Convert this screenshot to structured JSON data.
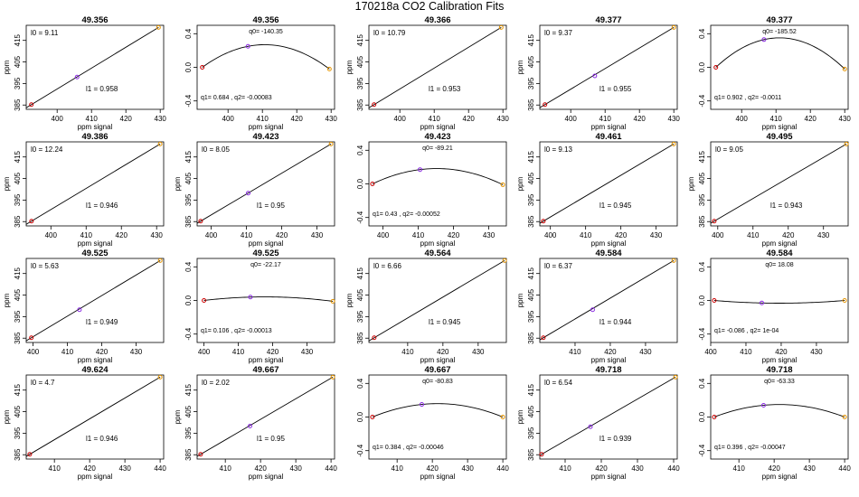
{
  "figure": {
    "title": "170218a   CO2 Calibration Fits",
    "colors": {
      "low_point": "#cc0000",
      "mid_point": "#8a2be2",
      "high_point": "#e69500",
      "line": "#000000"
    }
  },
  "chart_data": [
    {
      "type": "scatter",
      "kind": "linear",
      "title": "49.356",
      "xlabel": "ppm signal",
      "ylabel": "ppm",
      "xlim": [
        391,
        431
      ],
      "ylim": [
        383,
        422
      ],
      "xticks": [
        400,
        410,
        420,
        430
      ],
      "yticks": [
        385,
        395,
        405,
        415
      ],
      "points": [
        {
          "x": 392.5,
          "y": 385.2
        },
        {
          "x": 405.8,
          "y": 398.0
        },
        {
          "x": 429.5,
          "y": 421.0
        }
      ],
      "annotations": {
        "l0": "l0 =  9.11",
        "l1": "l1 =  0.958"
      }
    },
    {
      "type": "scatter",
      "kind": "quad",
      "title": "49.356",
      "xlabel": "ppm signal",
      "ylabel": "",
      "xlim": [
        391,
        431
      ],
      "ylim": [
        -0.5,
        0.5
      ],
      "xticks": [
        400,
        410,
        420,
        430
      ],
      "yticks": [
        -0.4,
        0.0,
        0.4
      ],
      "points": [
        {
          "x": 392.5,
          "y": 0.0
        },
        {
          "x": 405.8,
          "y": 0.25
        },
        {
          "x": 429.5,
          "y": -0.02
        }
      ],
      "annotations": {
        "q0": "q0= -140.35",
        "q12": "q1= 0.684 , q2= -0.00083"
      }
    },
    {
      "type": "scatter",
      "kind": "linear",
      "title": "49.366",
      "xlabel": "ppm signal",
      "ylabel": "ppm",
      "xlim": [
        391,
        431
      ],
      "ylim": [
        383,
        422
      ],
      "xticks": [
        400,
        410,
        420,
        430
      ],
      "yticks": [
        385,
        395,
        405,
        415
      ],
      "points": [
        {
          "x": 392.5,
          "y": 385.2
        },
        {
          "x": 429.5,
          "y": 421.0
        }
      ],
      "annotations": {
        "l0": "l0 =  10.79",
        "l1": "l1 =  0.953"
      }
    },
    {
      "type": "scatter",
      "kind": "linear",
      "title": "49.377",
      "xlabel": "ppm signal",
      "ylabel": "ppm",
      "xlim": [
        391,
        431
      ],
      "ylim": [
        383,
        422
      ],
      "xticks": [
        400,
        410,
        420,
        430
      ],
      "yticks": [
        385,
        395,
        405,
        415
      ],
      "points": [
        {
          "x": 392.5,
          "y": 385.2
        },
        {
          "x": 407.0,
          "y": 398.5
        },
        {
          "x": 430.0,
          "y": 421.0
        }
      ],
      "annotations": {
        "l0": "l0 =  9.37",
        "l1": "l1 =  0.955"
      }
    },
    {
      "type": "scatter",
      "kind": "quad",
      "title": "49.377",
      "xlabel": "ppm signal",
      "ylabel": "",
      "xlim": [
        391,
        431
      ],
      "ylim": [
        -0.5,
        0.5
      ],
      "xticks": [
        400,
        410,
        420,
        430
      ],
      "yticks": [
        -0.4,
        0.0,
        0.4
      ],
      "points": [
        {
          "x": 392.5,
          "y": 0.0
        },
        {
          "x": 406.5,
          "y": 0.33
        },
        {
          "x": 430.0,
          "y": -0.02
        }
      ],
      "annotations": {
        "q0": "q0= -185.52",
        "q12": "q1= 0.902 , q2= -0.0011"
      }
    },
    {
      "type": "scatter",
      "kind": "linear",
      "title": "49.386",
      "xlabel": "ppm signal",
      "ylabel": "ppm",
      "xlim": [
        393,
        432
      ],
      "ylim": [
        383,
        422
      ],
      "xticks": [
        400,
        410,
        420,
        430
      ],
      "yticks": [
        385,
        395,
        405,
        415
      ],
      "points": [
        {
          "x": 394.5,
          "y": 385.2
        },
        {
          "x": 431.0,
          "y": 421.0
        }
      ],
      "annotations": {
        "l0": "l0 =  12.24",
        "l1": "l1 =  0.946"
      }
    },
    {
      "type": "scatter",
      "kind": "linear",
      "title": "49.423",
      "xlabel": "ppm signal",
      "ylabel": "ppm",
      "xlim": [
        396,
        435
      ],
      "ylim": [
        383,
        422
      ],
      "xticks": [
        400,
        410,
        420,
        430
      ],
      "yticks": [
        385,
        395,
        405,
        415
      ],
      "points": [
        {
          "x": 397.0,
          "y": 385.2
        },
        {
          "x": 410.5,
          "y": 398.2
        },
        {
          "x": 434.0,
          "y": 421.0
        }
      ],
      "annotations": {
        "l0": "l0 =  8.05",
        "l1": "l1 =  0.95"
      }
    },
    {
      "type": "scatter",
      "kind": "quad",
      "title": "49.423",
      "xlabel": "ppm signal",
      "ylabel": "",
      "xlim": [
        396,
        435
      ],
      "ylim": [
        -0.5,
        0.5
      ],
      "xticks": [
        400,
        410,
        420,
        430
      ],
      "yticks": [
        -0.4,
        0.0,
        0.4
      ],
      "points": [
        {
          "x": 397.0,
          "y": 0.0
        },
        {
          "x": 410.5,
          "y": 0.17
        },
        {
          "x": 434.0,
          "y": -0.01
        }
      ],
      "annotations": {
        "q0": "q0= -89.21",
        "q12": "q1= 0.43 , q2= -0.00052"
      }
    },
    {
      "type": "scatter",
      "kind": "linear",
      "title": "49.461",
      "xlabel": "ppm signal",
      "ylabel": "ppm",
      "xlim": [
        397,
        436
      ],
      "ylim": [
        383,
        422
      ],
      "xticks": [
        400,
        410,
        420,
        430
      ],
      "yticks": [
        385,
        395,
        405,
        415
      ],
      "points": [
        {
          "x": 398.0,
          "y": 385.2
        },
        {
          "x": 435.0,
          "y": 421.0
        }
      ],
      "annotations": {
        "l0": "l0 =  9.13",
        "l1": "l1 =  0.945"
      }
    },
    {
      "type": "scatter",
      "kind": "linear",
      "title": "49.495",
      "xlabel": "ppm signal",
      "ylabel": "ppm",
      "xlim": [
        398,
        437
      ],
      "ylim": [
        383,
        422
      ],
      "xticks": [
        400,
        410,
        420,
        430
      ],
      "yticks": [
        385,
        395,
        405,
        415
      ],
      "points": [
        {
          "x": 399.0,
          "y": 385.2
        },
        {
          "x": 436.5,
          "y": 421.0
        }
      ],
      "annotations": {
        "l0": "l0 =  9.05",
        "l1": "l1 =  0.943"
      }
    },
    {
      "type": "scatter",
      "kind": "linear",
      "title": "49.525",
      "xlabel": "ppm signal",
      "ylabel": "ppm",
      "xlim": [
        398,
        438
      ],
      "ylim": [
        383,
        422
      ],
      "xticks": [
        400,
        410,
        420,
        430
      ],
      "yticks": [
        385,
        395,
        405,
        415
      ],
      "points": [
        {
          "x": 399.5,
          "y": 385.2
        },
        {
          "x": 413.5,
          "y": 398.2
        },
        {
          "x": 437.0,
          "y": 421.0
        }
      ],
      "annotations": {
        "l0": "l0 =  5.63",
        "l1": "l1 =  0.949"
      }
    },
    {
      "type": "scatter",
      "kind": "quad",
      "title": "49.525",
      "xlabel": "ppm signal",
      "ylabel": "",
      "xlim": [
        398,
        438
      ],
      "ylim": [
        -0.5,
        0.5
      ],
      "xticks": [
        400,
        410,
        420,
        430
      ],
      "yticks": [
        -0.4,
        0.0,
        0.4
      ],
      "points": [
        {
          "x": 400.0,
          "y": 0.0
        },
        {
          "x": 413.5,
          "y": 0.04
        },
        {
          "x": 437.5,
          "y": -0.01
        }
      ],
      "annotations": {
        "q0": "q0= -22.17",
        "q12": "q1= 0.106 , q2= -0.00013"
      }
    },
    {
      "type": "scatter",
      "kind": "linear",
      "title": "49.564",
      "xlabel": "ppm signal",
      "ylabel": "ppm",
      "xlim": [
        399,
        438
      ],
      "ylim": [
        383,
        422
      ],
      "xticks": [
        410,
        420,
        430
      ],
      "yticks": [
        385,
        395,
        405,
        415
      ],
      "points": [
        {
          "x": 400.5,
          "y": 385.2
        },
        {
          "x": 437.5,
          "y": 421.0
        }
      ],
      "annotations": {
        "l0": "l0 =  6.66",
        "l1": "l1 =  0.945"
      }
    },
    {
      "type": "scatter",
      "kind": "linear",
      "title": "49.584",
      "xlabel": "ppm signal",
      "ylabel": "ppm",
      "xlim": [
        400,
        439
      ],
      "ylim": [
        383,
        422
      ],
      "xticks": [
        410,
        420,
        430
      ],
      "yticks": [
        385,
        395,
        405,
        415
      ],
      "points": [
        {
          "x": 401.0,
          "y": 385.2
        },
        {
          "x": 415.0,
          "y": 398.2
        },
        {
          "x": 438.0,
          "y": 421.0
        }
      ],
      "annotations": {
        "l0": "l0 =  6.37",
        "l1": "l1 =  0.944"
      }
    },
    {
      "type": "scatter",
      "kind": "quad",
      "title": "49.584",
      "xlabel": "ppm signal",
      "ylabel": "",
      "xlim": [
        400,
        439
      ],
      "ylim": [
        -0.5,
        0.5
      ],
      "xticks": [
        400,
        410,
        420,
        430
      ],
      "yticks": [
        -0.4,
        0.0,
        0.4
      ],
      "points": [
        {
          "x": 401.0,
          "y": 0.0
        },
        {
          "x": 414.5,
          "y": -0.03
        },
        {
          "x": 438.0,
          "y": 0.0
        }
      ],
      "annotations": {
        "q0": "q0= 18.08",
        "q12": "q1= -0.086 , q2= 1e-04"
      }
    },
    {
      "type": "scatter",
      "kind": "linear",
      "title": "49.624",
      "xlabel": "ppm signal",
      "ylabel": "ppm",
      "xlim": [
        402,
        441
      ],
      "ylim": [
        383,
        422
      ],
      "xticks": [
        410,
        420,
        430,
        440
      ],
      "yticks": [
        385,
        395,
        405,
        415
      ],
      "points": [
        {
          "x": 403.0,
          "y": 385.2
        },
        {
          "x": 440.0,
          "y": 421.0
        }
      ],
      "annotations": {
        "l0": "l0 =  4.7",
        "l1": "l1 =  0.946"
      }
    },
    {
      "type": "scatter",
      "kind": "linear",
      "title": "49.667",
      "xlabel": "ppm signal",
      "ylabel": "ppm",
      "xlim": [
        402,
        441
      ],
      "ylim": [
        383,
        422
      ],
      "xticks": [
        410,
        420,
        430,
        440
      ],
      "yticks": [
        385,
        395,
        405,
        415
      ],
      "points": [
        {
          "x": 403.0,
          "y": 385.2
        },
        {
          "x": 417.0,
          "y": 398.3
        },
        {
          "x": 440.5,
          "y": 421.0
        }
      ],
      "annotations": {
        "l0": "l0 =  2.02",
        "l1": "l1 =  0.95"
      }
    },
    {
      "type": "scatter",
      "kind": "quad",
      "title": "49.667",
      "xlabel": "ppm signal",
      "ylabel": "",
      "xlim": [
        402,
        441
      ],
      "ylim": [
        -0.5,
        0.5
      ],
      "xticks": [
        410,
        420,
        430,
        440
      ],
      "yticks": [
        -0.4,
        0.0,
        0.4
      ],
      "points": [
        {
          "x": 403.0,
          "y": 0.0
        },
        {
          "x": 417.0,
          "y": 0.15
        },
        {
          "x": 440.0,
          "y": 0.0
        }
      ],
      "annotations": {
        "q0": "q0= -80.83",
        "q12": "q1= 0.384 , q2= -0.00046"
      }
    },
    {
      "type": "scatter",
      "kind": "linear",
      "title": "49.718",
      "xlabel": "ppm signal",
      "ylabel": "ppm",
      "xlim": [
        403,
        441
      ],
      "ylim": [
        383,
        422
      ],
      "xticks": [
        410,
        420,
        430,
        440
      ],
      "yticks": [
        385,
        395,
        405,
        415
      ],
      "points": [
        {
          "x": 403.5,
          "y": 385.2
        },
        {
          "x": 417.0,
          "y": 398.0
        },
        {
          "x": 440.5,
          "y": 421.0
        }
      ],
      "annotations": {
        "l0": "l0 =  6.54",
        "l1": "l1 =  0.939"
      }
    },
    {
      "type": "scatter",
      "kind": "quad",
      "title": "49.718",
      "xlabel": "ppm signal",
      "ylabel": "",
      "xlim": [
        402,
        441
      ],
      "ylim": [
        -0.5,
        0.5
      ],
      "xticks": [
        410,
        420,
        430,
        440
      ],
      "yticks": [
        -0.4,
        0.0,
        0.4
      ],
      "points": [
        {
          "x": 403.0,
          "y": 0.0
        },
        {
          "x": 417.0,
          "y": 0.14
        },
        {
          "x": 440.0,
          "y": 0.0
        }
      ],
      "annotations": {
        "q0": "q0= -63.33",
        "q12": "q1= 0.396 , q2= -0.00047"
      }
    }
  ]
}
